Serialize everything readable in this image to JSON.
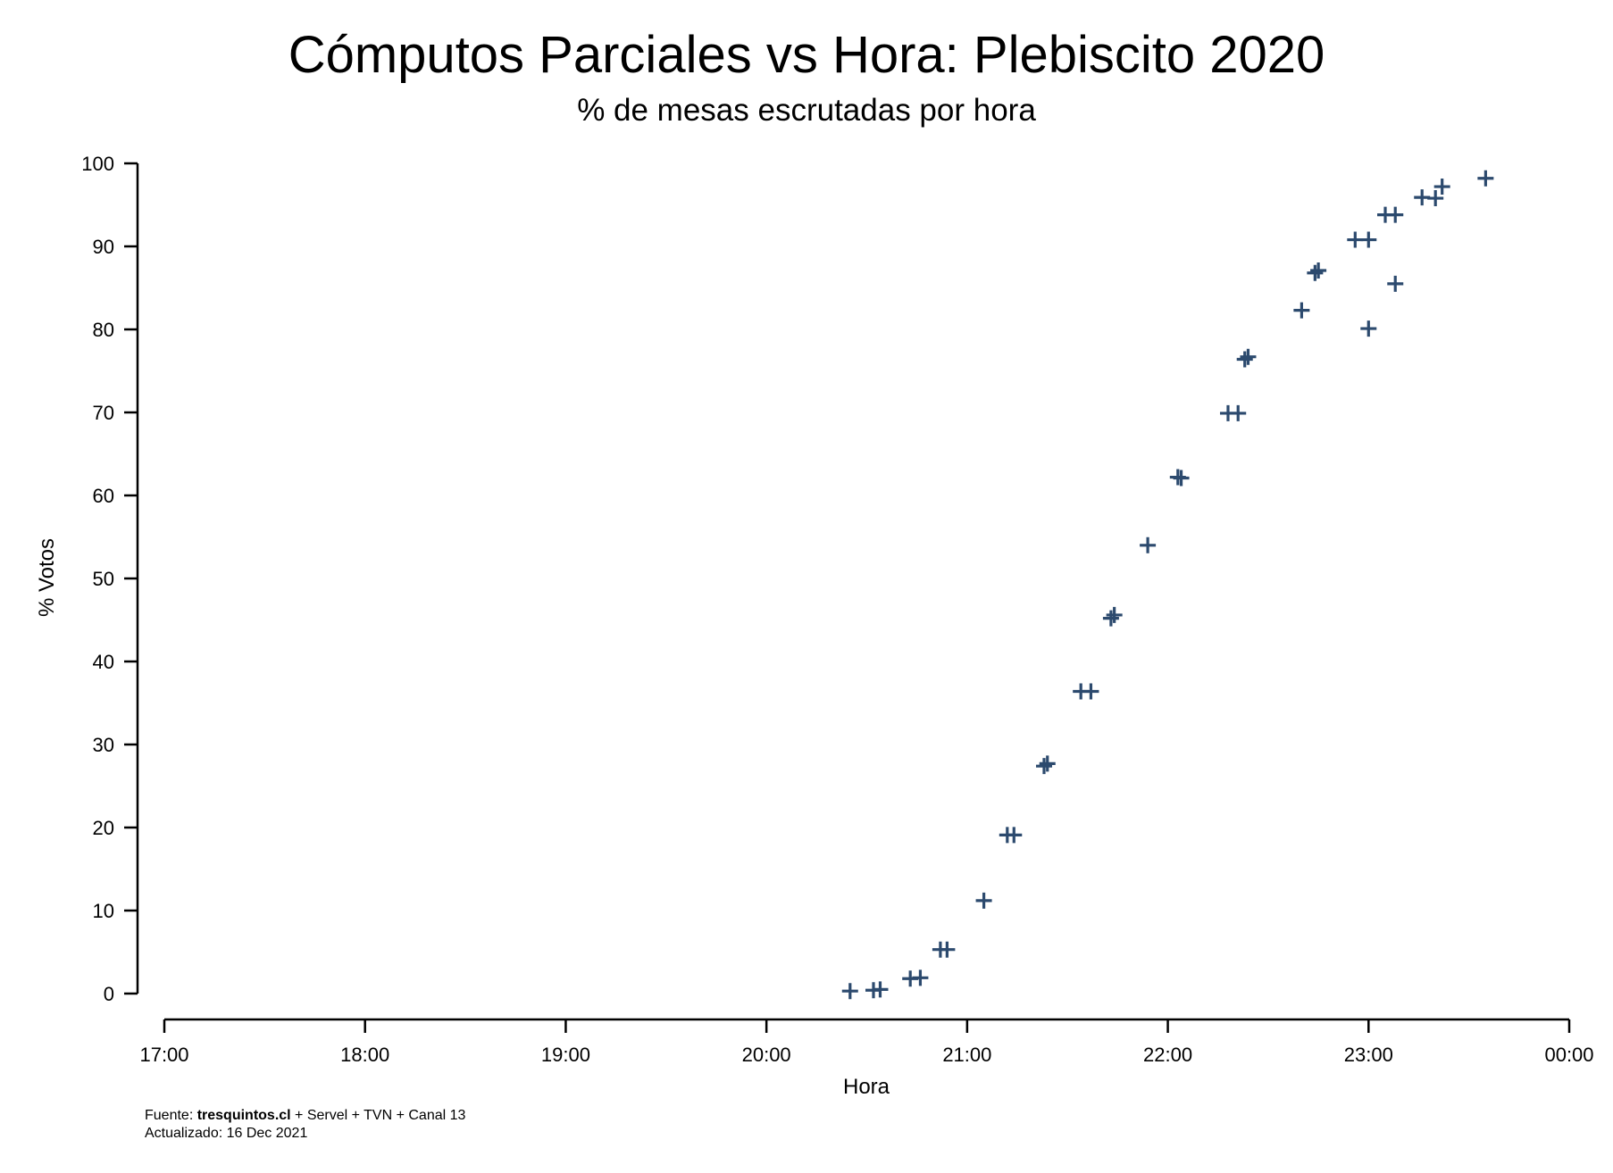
{
  "chart_data": {
    "type": "scatter",
    "title": "Cómputos Parciales vs Hora: Plebiscito 2020",
    "subtitle": "% de mesas escrutadas por hora",
    "xlabel": "Hora",
    "ylabel": "% Votos",
    "x_unit": "hour of day",
    "xlim": [
      "17:00",
      "00:00"
    ],
    "ylim": [
      0,
      100
    ],
    "x_ticks": [
      "17:00",
      "18:00",
      "19:00",
      "20:00",
      "21:00",
      "22:00",
      "23:00",
      "00:00"
    ],
    "y_ticks": [
      0,
      10,
      20,
      30,
      40,
      50,
      60,
      70,
      80,
      90,
      100
    ],
    "marker": "plus",
    "grid": false,
    "legend": "none",
    "color": "#2c4a6e",
    "points": [
      {
        "x": "20:25",
        "y": 0.3
      },
      {
        "x": "20:32",
        "y": 0.4
      },
      {
        "x": "20:34",
        "y": 0.5
      },
      {
        "x": "20:43",
        "y": 1.8
      },
      {
        "x": "20:46",
        "y": 1.9
      },
      {
        "x": "20:52",
        "y": 5.3
      },
      {
        "x": "20:54",
        "y": 5.3
      },
      {
        "x": "21:05",
        "y": 11.2
      },
      {
        "x": "21:12",
        "y": 19.1
      },
      {
        "x": "21:14",
        "y": 19.1
      },
      {
        "x": "21:23",
        "y": 27.4
      },
      {
        "x": "21:24",
        "y": 27.7
      },
      {
        "x": "21:34",
        "y": 36.4
      },
      {
        "x": "21:37",
        "y": 36.4
      },
      {
        "x": "21:43",
        "y": 45.2
      },
      {
        "x": "21:44",
        "y": 45.6
      },
      {
        "x": "21:54",
        "y": 54.0
      },
      {
        "x": "22:03",
        "y": 62.2
      },
      {
        "x": "22:04",
        "y": 62.1
      },
      {
        "x": "22:18",
        "y": 69.9
      },
      {
        "x": "22:21",
        "y": 69.9
      },
      {
        "x": "22:23",
        "y": 76.4
      },
      {
        "x": "22:24",
        "y": 76.7
      },
      {
        "x": "22:40",
        "y": 82.3
      },
      {
        "x": "22:44",
        "y": 86.8
      },
      {
        "x": "22:45",
        "y": 87.1
      },
      {
        "x": "22:56",
        "y": 90.8
      },
      {
        "x": "23:00",
        "y": 90.8
      },
      {
        "x": "23:00",
        "y": 80.1
      },
      {
        "x": "23:05",
        "y": 93.8
      },
      {
        "x": "23:08",
        "y": 93.8
      },
      {
        "x": "23:08",
        "y": 85.5
      },
      {
        "x": "23:16",
        "y": 95.9
      },
      {
        "x": "23:20",
        "y": 95.8
      },
      {
        "x": "23:22",
        "y": 97.2
      },
      {
        "x": "23:35",
        "y": 98.2
      }
    ]
  },
  "footer": {
    "source_prefix": "Fuente: ",
    "source_site": "tresquintos.cl",
    "source_rest": " + Servel + TVN + Canal 13",
    "updated": "Actualizado: 16 Dec 2021"
  }
}
